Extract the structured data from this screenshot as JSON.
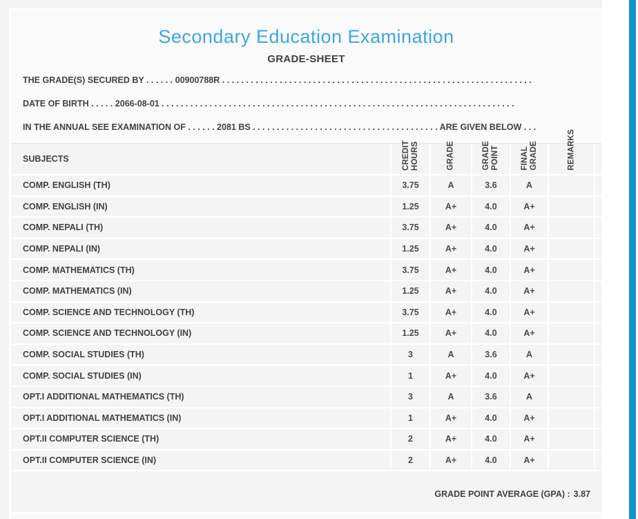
{
  "page": {
    "title": "Secondary Education Examination",
    "subtitle": "GRADE-SHEET"
  },
  "colors": {
    "title_accent": "#3BA7E0",
    "scrollbar": "#0D95CB",
    "card_background": "#FAFAFA",
    "table_row_background": "#F4F4F4",
    "text": "#414042"
  },
  "student_info": {
    "line1": "THE GRADE(S) SECURED BY . . . . . . 00900788R . . . . . . . . . . . . . . . . . . . . . . . . . . . . . . . . . . . . . . . . . . . . . . . . . . . . . . . . . . . . . . . . .",
    "line2": "DATE OF BIRTH . . . . . 2066-08-01 . . . . . . . . . . . . . . . . . . . . . . . . . . . . . . . . . . . . . . . . . . . . . . . . . . . . . . . . . . . . . . . . . . . . . . . . . .",
    "line3": "IN THE ANNUAL SEE EXAMINATION OF . . . . . . 2081 BS . . . . . . . . . . . . . . . . . . . . . . . . . . . . . . . . . . . . . . . ARE GIVEN BELOW . . ."
  },
  "table": {
    "columns": [
      {
        "label": "SUBJECTS"
      },
      {
        "label": "CREDIT\nHOURS"
      },
      {
        "label": "GRADE"
      },
      {
        "label": "GRADE\nPOINT"
      },
      {
        "label": "FINAL\nGRADE"
      },
      {
        "label": "REMARKS"
      }
    ],
    "rows": [
      {
        "subject": "COMP. ENGLISH (TH)",
        "credit_hours": "3.75",
        "grade": "A",
        "grade_point": "3.6",
        "final_grade": "A",
        "remarks": ""
      },
      {
        "subject": "COMP. ENGLISH (IN)",
        "credit_hours": "1.25",
        "grade": "A+",
        "grade_point": "4.0",
        "final_grade": "A+",
        "remarks": ""
      },
      {
        "subject": "COMP. NEPALI (TH)",
        "credit_hours": "3.75",
        "grade": "A+",
        "grade_point": "4.0",
        "final_grade": "A+",
        "remarks": ""
      },
      {
        "subject": "COMP. NEPALI (IN)",
        "credit_hours": "1.25",
        "grade": "A+",
        "grade_point": "4.0",
        "final_grade": "A+",
        "remarks": ""
      },
      {
        "subject": "COMP. MATHEMATICS (TH)",
        "credit_hours": "3.75",
        "grade": "A+",
        "grade_point": "4.0",
        "final_grade": "A+",
        "remarks": ""
      },
      {
        "subject": "COMP. MATHEMATICS (IN)",
        "credit_hours": "1.25",
        "grade": "A+",
        "grade_point": "4.0",
        "final_grade": "A+",
        "remarks": ""
      },
      {
        "subject": "COMP. SCIENCE AND TECHNOLOGY (TH)",
        "credit_hours": "3.75",
        "grade": "A+",
        "grade_point": "4.0",
        "final_grade": "A+",
        "remarks": ""
      },
      {
        "subject": "COMP. SCIENCE AND TECHNOLOGY (IN)",
        "credit_hours": "1.25",
        "grade": "A+",
        "grade_point": "4.0",
        "final_grade": "A+",
        "remarks": ""
      },
      {
        "subject": "COMP. SOCIAL STUDIES (TH)",
        "credit_hours": "3",
        "grade": "A",
        "grade_point": "3.6",
        "final_grade": "A",
        "remarks": ""
      },
      {
        "subject": "COMP. SOCIAL STUDIES (IN)",
        "credit_hours": "1",
        "grade": "A+",
        "grade_point": "4.0",
        "final_grade": "A+",
        "remarks": ""
      },
      {
        "subject": "OPT.I ADDITIONAL MATHEMATICS (TH)",
        "credit_hours": "3",
        "grade": "A",
        "grade_point": "3.6",
        "final_grade": "A",
        "remarks": ""
      },
      {
        "subject": "OPT.I ADDITIONAL MATHEMATICS (IN)",
        "credit_hours": "1",
        "grade": "A+",
        "grade_point": "4.0",
        "final_grade": "A+",
        "remarks": ""
      },
      {
        "subject": "OPT.II COMPUTER SCIENCE (TH)",
        "credit_hours": "2",
        "grade": "A+",
        "grade_point": "4.0",
        "final_grade": "A+",
        "remarks": ""
      },
      {
        "subject": "OPT.II COMPUTER SCIENCE (IN)",
        "credit_hours": "2",
        "grade": "A+",
        "grade_point": "4.0",
        "final_grade": "A+",
        "remarks": ""
      }
    ]
  },
  "summary": {
    "gpa_label": "GRADE POINT AVERAGE (GPA) :",
    "gpa_value": "3.87"
  }
}
